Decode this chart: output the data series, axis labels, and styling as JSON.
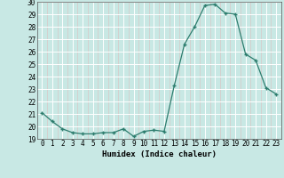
{
  "x": [
    0,
    1,
    2,
    3,
    4,
    5,
    6,
    7,
    8,
    9,
    10,
    11,
    12,
    13,
    14,
    15,
    16,
    17,
    18,
    19,
    20,
    21,
    22,
    23
  ],
  "y": [
    21.1,
    20.4,
    19.8,
    19.5,
    19.4,
    19.4,
    19.5,
    19.5,
    19.8,
    19.2,
    19.6,
    19.7,
    19.6,
    23.3,
    26.6,
    28.0,
    29.7,
    29.8,
    29.1,
    29.0,
    25.8,
    25.3,
    23.1,
    22.6
  ],
  "line_color": "#2d7d6e",
  "marker_color": "#2d7d6e",
  "bg_color": "#c8e8e4",
  "grid_color_major": "#b0d4d0",
  "grid_color_minor": "#daf0ee",
  "xlabel": "Humidex (Indice chaleur)",
  "ylim": [
    19,
    30
  ],
  "xlim": [
    -0.5,
    23.5
  ],
  "yticks": [
    19,
    20,
    21,
    22,
    23,
    24,
    25,
    26,
    27,
    28,
    29,
    30
  ],
  "xticks": [
    0,
    1,
    2,
    3,
    4,
    5,
    6,
    7,
    8,
    9,
    10,
    11,
    12,
    13,
    14,
    15,
    16,
    17,
    18,
    19,
    20,
    21,
    22,
    23
  ],
  "label_fontsize": 6.5,
  "tick_fontsize": 5.5
}
